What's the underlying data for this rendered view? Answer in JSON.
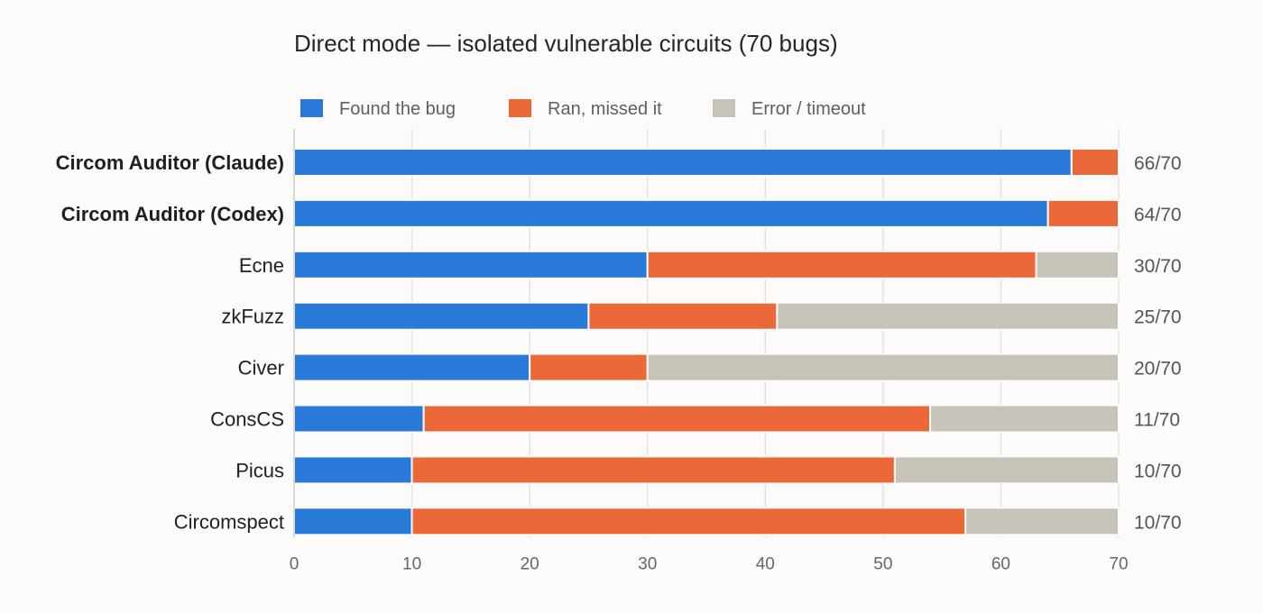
{
  "chart_data": {
    "type": "bar",
    "orientation": "horizontal",
    "stacked": true,
    "title": "Direct mode — isolated vulnerable circuits (70 bugs)",
    "categories": [
      "Circom Auditor (Claude)",
      "Circom Auditor (Codex)",
      "Ecne",
      "zkFuzz",
      "Civer",
      "ConsCS",
      "Picus",
      "Circomspect"
    ],
    "bold_categories": [
      "Circom Auditor (Claude)",
      "Circom Auditor (Codex)"
    ],
    "series": [
      {
        "name": "Found the bug",
        "color": "#2979d8",
        "values": [
          66,
          64,
          30,
          25,
          20,
          11,
          10,
          10
        ]
      },
      {
        "name": "Ran, missed it",
        "color": "#eb6838",
        "values": [
          4,
          6,
          33,
          16,
          10,
          43,
          41,
          47
        ]
      },
      {
        "name": "Error / timeout",
        "color": "#c7c3b9",
        "values": [
          0,
          0,
          7,
          29,
          40,
          16,
          19,
          13
        ]
      }
    ],
    "totals": [
      "66/70",
      "64/70",
      "30/70",
      "25/70",
      "20/70",
      "11/70",
      "10/70",
      "10/70"
    ],
    "xlim": [
      0,
      70
    ],
    "xticks": [
      0,
      10,
      20,
      30,
      40,
      50,
      60,
      70
    ],
    "xlabel": "",
    "ylabel": "",
    "grid": true,
    "legend_position": "top-left"
  }
}
